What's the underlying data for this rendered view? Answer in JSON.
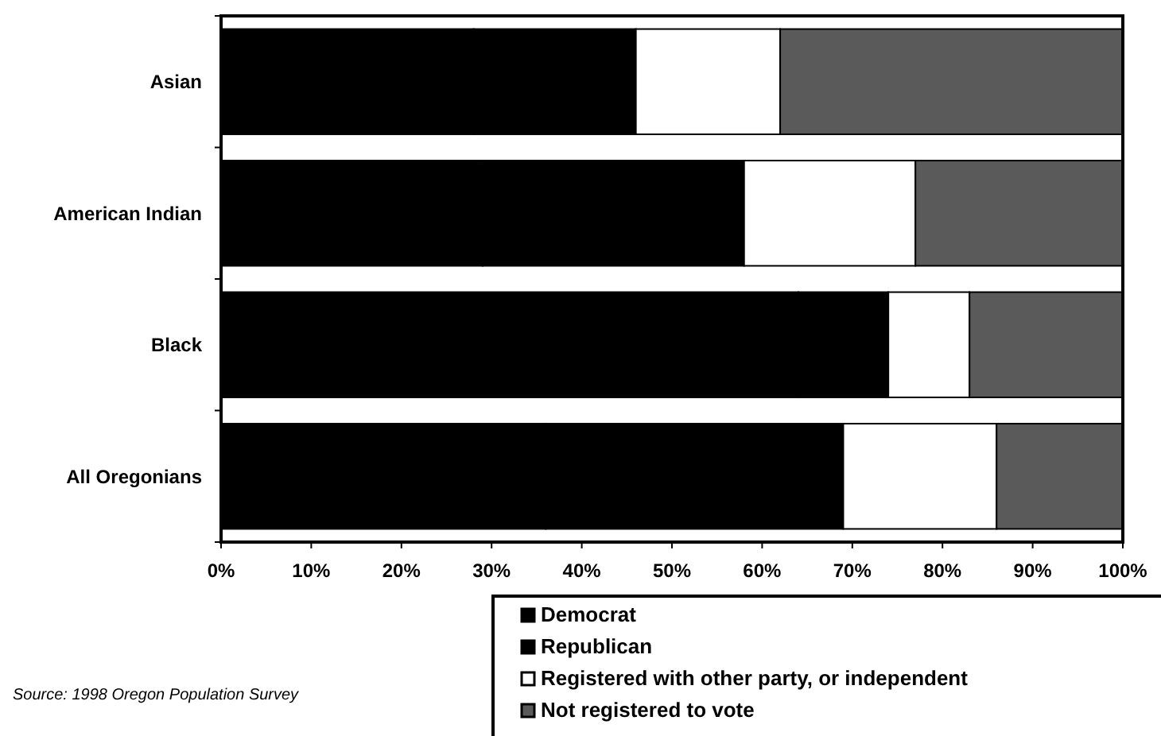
{
  "chart_data": {
    "type": "bar",
    "orientation": "horizontal",
    "stacked": true,
    "categories": [
      "Asian",
      "American Indian",
      "Black",
      "All Oregonians"
    ],
    "series": [
      {
        "name": "Democrat",
        "color": "#000000",
        "values": [
          28,
          29,
          64,
          36
        ]
      },
      {
        "name": "Republican",
        "color": "#000000",
        "values": [
          18,
          29,
          10,
          33
        ]
      },
      {
        "name": "Registered with other party, or independent",
        "color": "#ffffff",
        "values": [
          16,
          19,
          9,
          17
        ]
      },
      {
        "name": "Not registered to vote",
        "color": "#5a5a5a",
        "values": [
          38,
          23,
          17,
          14
        ]
      }
    ],
    "xlim": [
      0,
      100
    ],
    "xticks": [
      {
        "value": 0,
        "label": "0%"
      },
      {
        "value": 10,
        "label": "10%"
      },
      {
        "value": 20,
        "label": "20%"
      },
      {
        "value": 30,
        "label": "30%"
      },
      {
        "value": 40,
        "label": "40%"
      },
      {
        "value": 50,
        "label": "50%"
      },
      {
        "value": 60,
        "label": "60%"
      },
      {
        "value": 70,
        "label": "70%"
      },
      {
        "value": 80,
        "label": "80%"
      },
      {
        "value": 90,
        "label": "90%"
      },
      {
        "value": 100,
        "label": "100%"
      }
    ],
    "grid": false,
    "legend": "bottom right",
    "annotations": [
      "Source: 1998 Oregon Population Survey"
    ]
  }
}
